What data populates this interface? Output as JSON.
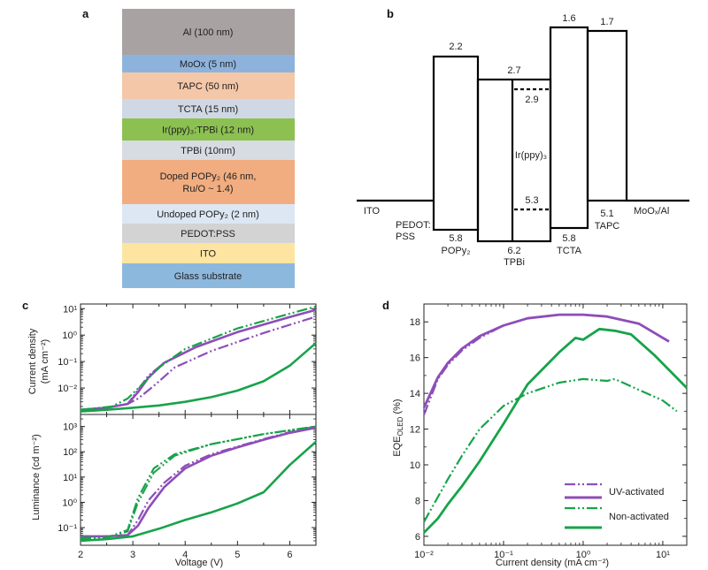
{
  "panels": {
    "a": "a",
    "b": "b",
    "c": "c",
    "d": "d"
  },
  "colors": {
    "uv": "#8e4db8",
    "non": "#17a34a",
    "stroke": "#000000"
  },
  "stack": [
    {
      "label": "Al (100 nm)",
      "color": "#a8a2a2"
    },
    {
      "label": "MoOx (5 nm)",
      "color": "#8db3dd"
    },
    {
      "label": "TAPC (50 nm)",
      "color": "#f4c7a8"
    },
    {
      "label": "TCTA (15 nm)",
      "color": "#cfd8e4"
    },
    {
      "label": "Ir(ppy)₃:TPBi (12 nm)",
      "color": "#8cc152"
    },
    {
      "label": "TPBi (10nm)",
      "color": "#d7dbe2"
    },
    {
      "label": "Doped POPy₂ (46 nm,",
      "label2": "Ru/O ~ 1.4)",
      "color": "#f1ad80"
    },
    {
      "label": "Undoped POPy₂ (2 nm)",
      "color": "#dce7f3"
    },
    {
      "label": "PEDOT:PSS",
      "color": "#d3d3d3"
    },
    {
      "label": "ITO",
      "color": "#fde5a1"
    },
    {
      "label": "Glass substrate",
      "color": "#8db8de"
    }
  ],
  "energy": {
    "pop_top": "2.2",
    "tpbi_top": "2.7",
    "tcta_top": "1.6",
    "tapc_top": "1.7",
    "ir_top": "2.9",
    "ir_bot": "5.3",
    "ir_label": "Ir(ppy)₃",
    "pop_bot": "5.8",
    "tpbi_bot": "6.2",
    "tcta_bot": "5.8",
    "tapc_bot": "5.1",
    "ito": "ITO",
    "pedot1": "PEDOT:",
    "pedot2": "PSS",
    "popy": "POPy₂",
    "tpbi": "TPBi",
    "tcta": "TCTA",
    "tapc": "TAPC",
    "moo": "MoOₓ/Al"
  },
  "panel_c": {
    "ylabel_top": [
      "Current density",
      "(mA cm⁻²)"
    ],
    "ylabel_bottom": "Luminance (cd m⁻²)",
    "xlabel": "Voltage (V)",
    "xticks": [
      "2",
      "3",
      "4",
      "5",
      "6"
    ],
    "yticks_top": [
      "10⁻²",
      "10⁻¹",
      "10⁰",
      "10¹"
    ],
    "yticks_bottom": [
      "10⁻¹",
      "10⁰",
      "10¹",
      "10²",
      "10³"
    ]
  },
  "panel_d": {
    "ylabel": "EQE_OLED (%)",
    "xlabel": "Current density (mA cm⁻²)",
    "xticks": [
      "10⁻²",
      "10⁻¹",
      "10⁰",
      "10¹"
    ],
    "yticks": [
      "6",
      "8",
      "10",
      "12",
      "14",
      "16",
      "18"
    ],
    "legend": [
      "UV-activated",
      "Non-activated"
    ]
  },
  "chart_data": [
    {
      "type": "line",
      "xlabel": "Voltage (V)",
      "ylabel": "Current density (mA cm⁻²)",
      "scale_y": "log",
      "xlim": [
        2,
        6.5
      ],
      "ylim": [
        0.001,
        15
      ],
      "series": [
        {
          "x": [
            2,
            2.5,
            2.9,
            3.1,
            3.4,
            3.8,
            4.5,
            5.5,
            6.5
          ],
          "y": [
            0.0015,
            0.0018,
            0.0025,
            0.004,
            0.012,
            0.06,
            0.25,
            1.2,
            5
          ]
        },
        {
          "x": [
            2,
            2.5,
            2.9,
            3.1,
            3.3,
            3.6,
            4.2,
            5,
            6,
            6.5
          ],
          "y": [
            0.0015,
            0.0018,
            0.0025,
            0.007,
            0.025,
            0.09,
            0.35,
            1.3,
            4.8,
            9
          ]
        },
        {
          "x": [
            2,
            2.5,
            2.9,
            3.3,
            3.6,
            4.2,
            5,
            6,
            6.5
          ],
          "y": [
            0.0015,
            0.0018,
            0.0025,
            0.03,
            0.09,
            0.35,
            1.3,
            4.8,
            9
          ]
        },
        {
          "x": [
            2,
            2.6,
            2.9,
            3.2,
            3.5,
            4,
            5,
            6,
            6.5
          ],
          "y": [
            0.0015,
            0.002,
            0.004,
            0.015,
            0.06,
            0.3,
            1.8,
            6.5,
            12
          ]
        },
        {
          "x": [
            2,
            2.5,
            3,
            3.5,
            4,
            4.5,
            5,
            5.5,
            6,
            6.5
          ],
          "y": [
            0.0013,
            0.0015,
            0.0018,
            0.0022,
            0.003,
            0.0045,
            0.008,
            0.018,
            0.07,
            0.5
          ]
        }
      ]
    },
    {
      "type": "line",
      "xlabel": "Voltage (V)",
      "ylabel": "Luminance (cd m⁻²)",
      "scale_y": "log",
      "xlim": [
        2,
        6.5
      ],
      "ylim": [
        0.02,
        3000
      ],
      "series": [
        {
          "x": [
            2,
            2.5,
            2.9,
            3.1,
            3.3,
            3.6,
            4,
            4.5,
            5,
            5.5,
            6,
            6.5
          ],
          "y": [
            0.045,
            0.045,
            0.05,
            0.2,
            1.2,
            6,
            28,
            80,
            160,
            320,
            600,
            1000
          ]
        },
        {
          "x": [
            2,
            2.5,
            2.9,
            3.1,
            3.3,
            3.6,
            4,
            4.5,
            5,
            5.5,
            6,
            6.5
          ],
          "y": [
            0.045,
            0.045,
            0.05,
            0.12,
            0.6,
            4,
            22,
            70,
            150,
            300,
            560,
            900
          ]
        },
        {
          "x": [
            2,
            2.5,
            2.9,
            3.1,
            3.4,
            3.8,
            4.5,
            5.5,
            6.5
          ],
          "y": [
            0.04,
            0.04,
            0.08,
            1.5,
            22,
            80,
            200,
            500,
            1000
          ]
        },
        {
          "x": [
            2,
            2.5,
            2.9,
            3.1,
            3.4,
            3.8,
            4.5,
            5.5,
            6.5
          ],
          "y": [
            0.035,
            0.04,
            0.07,
            1,
            15,
            70,
            200,
            500,
            1000
          ]
        },
        {
          "x": [
            2,
            2.5,
            3,
            3.5,
            4,
            4.5,
            5,
            5.5,
            6,
            6.5
          ],
          "y": [
            0.03,
            0.035,
            0.045,
            0.09,
            0.2,
            0.4,
            0.9,
            2.5,
            30,
            250
          ]
        }
      ]
    },
    {
      "type": "line",
      "xlabel": "Current density (mA cm⁻²)",
      "ylabel": "EQE_OLED (%)",
      "scale_x": "log",
      "xlim": [
        0.01,
        20
      ],
      "ylim": [
        5.5,
        19
      ],
      "series": [
        {
          "name": "UV-activated",
          "x": [
            0.01,
            0.015,
            0.02,
            0.03,
            0.05,
            0.1,
            0.2,
            0.5,
            1,
            2,
            5,
            10
          ],
          "y": [
            12.8,
            14.8,
            15.6,
            16.4,
            17.1,
            17.8,
            18.2,
            18.4,
            18.4,
            18.3,
            17.9,
            17.1
          ]
        },
        {
          "name": "UV-activated",
          "x": [
            0.01,
            0.015,
            0.02,
            0.03,
            0.05,
            0.1,
            0.2,
            0.5,
            1,
            2,
            5,
            12
          ],
          "y": [
            13.2,
            14.9,
            15.7,
            16.5,
            17.2,
            17.8,
            18.2,
            18.4,
            18.4,
            18.3,
            17.9,
            16.9
          ]
        },
        {
          "name": "Non-activated",
          "x": [
            0.01,
            0.015,
            0.02,
            0.03,
            0.05,
            0.1,
            0.2,
            0.5,
            0.8,
            1,
            1.6,
            2.5,
            4,
            8,
            20
          ],
          "y": [
            6.2,
            7,
            7.8,
            8.8,
            10.2,
            12.3,
            14.5,
            16.3,
            17.1,
            17,
            17.6,
            17.5,
            17.3,
            16.1,
            14.3
          ]
        },
        {
          "name": "Non-activated",
          "x": [
            0.01,
            0.015,
            0.02,
            0.03,
            0.05,
            0.1,
            0.2,
            0.5,
            1,
            2,
            2.5,
            5,
            10,
            15
          ],
          "y": [
            6.8,
            8.2,
            9.2,
            10.5,
            12,
            13.3,
            14,
            14.6,
            14.8,
            14.7,
            14.8,
            14.2,
            13.6,
            13
          ]
        }
      ]
    }
  ]
}
